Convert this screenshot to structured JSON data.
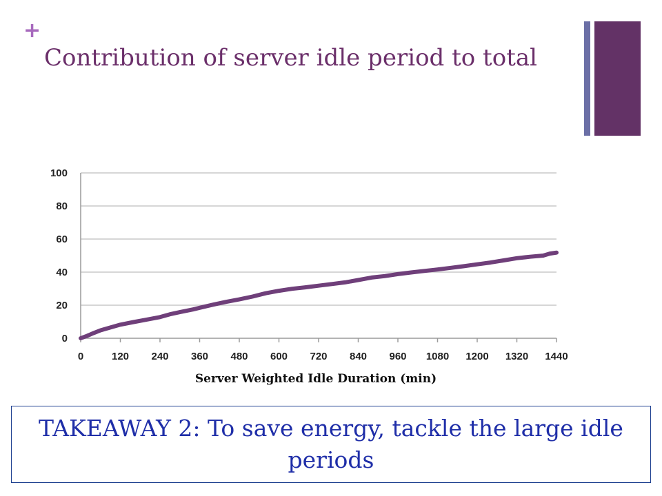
{
  "slide": {
    "bullet_mark": "+",
    "title": "Contribution of server idle period to total",
    "takeaway": "TAKEAWAY 2: To save energy, tackle the large idle periods",
    "colors": {
      "title": "#6b2f6a",
      "bullet": "#a769bd",
      "accent_bar_dark": "#633266",
      "accent_bar_light": "#6b6fa6",
      "takeaway_text": "#1f2ea8",
      "takeaway_border": "#1c3f8f"
    }
  },
  "chart_data": {
    "type": "line",
    "title": "",
    "xlabel": "Server Weighted Idle Duration (min)",
    "ylabel": "",
    "xlim": [
      0,
      1440
    ],
    "ylim": [
      0,
      100
    ],
    "xticks": [
      0,
      120,
      240,
      360,
      480,
      600,
      720,
      840,
      960,
      1080,
      1200,
      1320,
      1440
    ],
    "yticks": [
      0,
      20,
      40,
      60,
      80,
      100
    ],
    "grid": "horizontal",
    "legend": "none",
    "series": [
      {
        "color": "#6f3f7a",
        "x": [
          0,
          20,
          40,
          60,
          90,
          120,
          160,
          200,
          240,
          270,
          300,
          340,
          360,
          400,
          440,
          480,
          520,
          560,
          600,
          640,
          680,
          720,
          760,
          800,
          840,
          880,
          920,
          960,
          1000,
          1040,
          1080,
          1120,
          1160,
          1200,
          1240,
          1280,
          1320,
          1360,
          1400,
          1420,
          1440
        ],
        "y": [
          0,
          1.5,
          3.2,
          4.8,
          6.5,
          8.2,
          9.8,
          11.3,
          12.8,
          14.5,
          15.8,
          17.4,
          18.4,
          20.3,
          22.0,
          23.5,
          25.2,
          27.2,
          28.7,
          29.9,
          30.8,
          31.8,
          32.8,
          33.8,
          35.2,
          36.7,
          37.6,
          38.8,
          39.8,
          40.7,
          41.6,
          42.6,
          43.6,
          44.7,
          45.8,
          47.1,
          48.4,
          49.3,
          50.0,
          51.2,
          51.8
        ]
      }
    ]
  }
}
